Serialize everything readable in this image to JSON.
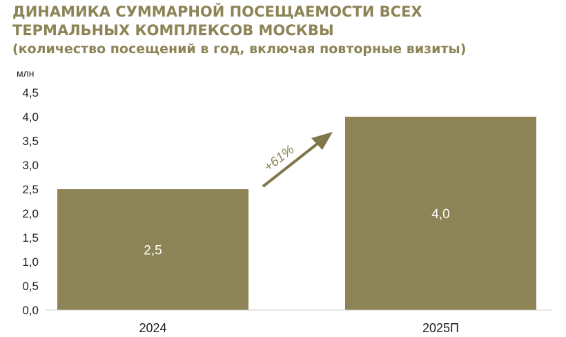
{
  "title": {
    "line1": "ДИНАМИКА СУММАРНОЙ ПОСЕЩАЕМОСТИ ВСЕХ",
    "line2": "ТЕРМАЛЬНЫХ КОМПЛЕКСОВ МОСКВЫ",
    "subtitle": "(количество посещений в год, включая повторные визиты)"
  },
  "colors": {
    "bar": "#8c8456",
    "title": "#8c8456",
    "axis": "#cccccc"
  },
  "chart_data": {
    "type": "bar",
    "categories": [
      "2024",
      "2025П"
    ],
    "values": [
      2.5,
      4.0
    ],
    "data_labels": [
      "2,5",
      "4,0"
    ],
    "ylabel": "млн",
    "ylim": [
      0,
      4.5
    ],
    "yticks": [
      "0,0",
      "0,5",
      "1,0",
      "1,5",
      "2,0",
      "2,5",
      "3,0",
      "3,5",
      "4,0",
      "4,5"
    ],
    "grid": false,
    "annotation": {
      "text": "+61%",
      "icon": "arrow-up-right-icon"
    }
  }
}
